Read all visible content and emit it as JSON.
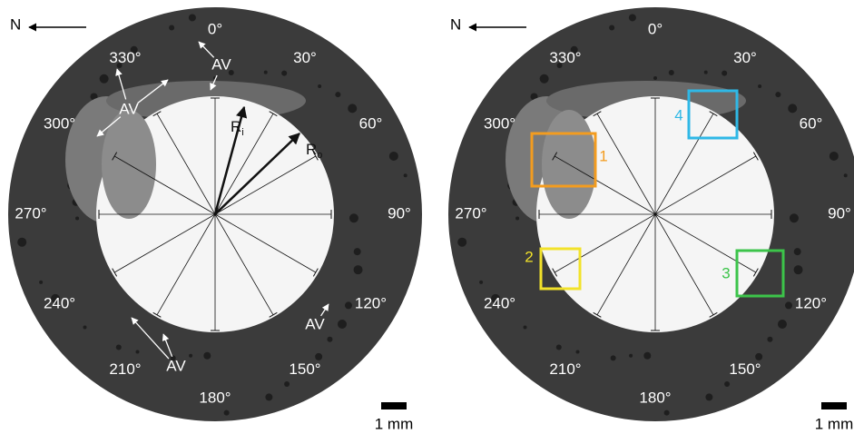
{
  "panels": [
    {
      "north": "N",
      "angles": [
        "0°",
        "30°",
        "60°",
        "90°",
        "120°",
        "150°",
        "180°",
        "210°",
        "240°",
        "270°",
        "300°",
        "330°"
      ],
      "scale": "1 mm",
      "annotations": [
        "AV",
        "AV",
        "AV",
        "AV"
      ],
      "radii": [
        {
          "text": "R",
          "subscript": "i"
        },
        {
          "text": "R",
          "subscript": "o"
        }
      ]
    },
    {
      "north": "N",
      "angles": [
        "0°",
        "30°",
        "60°",
        "90°",
        "120°",
        "150°",
        "180°",
        "210°",
        "240°",
        "270°",
        "300°",
        "330°"
      ],
      "scale": "1 mm",
      "boxes": [
        {
          "label": "1",
          "color": "#f39c1f"
        },
        {
          "label": "2",
          "color": "#f2e22a"
        },
        {
          "label": "3",
          "color": "#3cc44a"
        },
        {
          "label": "4",
          "color": "#2fb8e6"
        }
      ]
    }
  ]
}
